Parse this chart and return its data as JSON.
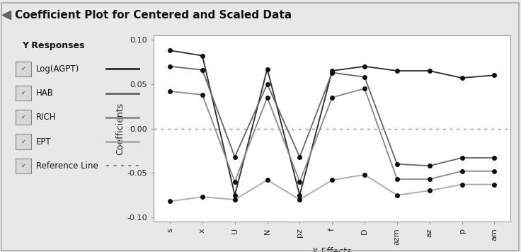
{
  "title": "Coefficient Plot for Centered and Scaled Data",
  "xlabel": "X Effects",
  "ylabel": "Coefficients",
  "x_labels": [
    "s",
    "x",
    "U",
    "N",
    "pz",
    "f",
    "D",
    "azm",
    "az",
    "p",
    "am"
  ],
  "ylim": [
    -0.105,
    0.105
  ],
  "yticks": [
    -0.1,
    -0.05,
    0.0,
    0.05,
    0.1
  ],
  "series": {
    "Log(AGPT)": {
      "color": "#2a2a2a",
      "values": [
        0.088,
        0.082,
        -0.075,
        0.067,
        -0.075,
        0.065,
        0.07,
        0.065,
        0.065,
        0.057,
        0.06
      ]
    },
    "HAB": {
      "color": "#666666",
      "values": [
        0.07,
        0.066,
        -0.032,
        0.05,
        -0.032,
        0.063,
        0.058,
        -0.04,
        -0.042,
        -0.033,
        -0.033
      ]
    },
    "RICH": {
      "color": "#888888",
      "values": [
        0.042,
        0.038,
        -0.06,
        0.035,
        -0.06,
        0.035,
        0.045,
        -0.057,
        -0.057,
        -0.048,
        -0.048
      ]
    },
    "EPT": {
      "color": "#aaaaaa",
      "values": [
        -0.082,
        -0.077,
        -0.08,
        -0.058,
        -0.08,
        -0.058,
        -0.052,
        -0.075,
        -0.07,
        -0.063,
        -0.063
      ]
    }
  },
  "legend_labels": [
    "Log(AGPT)",
    "HAB",
    "RICH",
    "EPT",
    "Reference Line"
  ],
  "bg_color": "#e8e8e8",
  "plot_bg_color": "#ffffff",
  "title_bar_color": "#d0d0d0",
  "outer_frame_color": "#bbbbbb"
}
